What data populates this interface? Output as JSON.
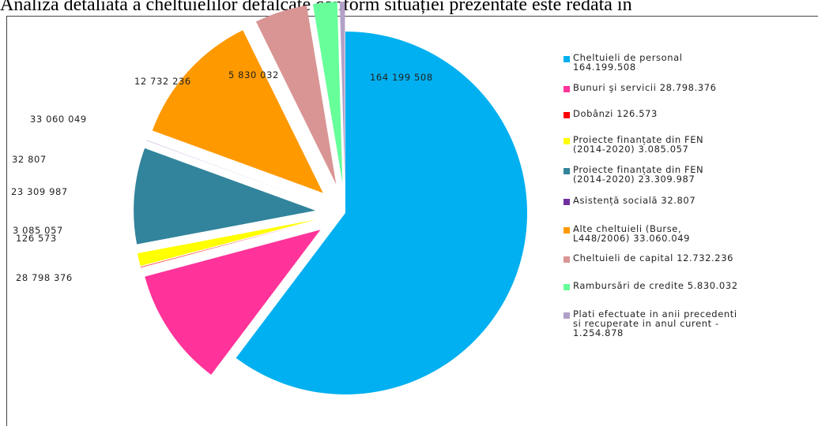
{
  "caption": "Analiza detaliată a cheltuielilor defalcate conform situației prezentate este redată în",
  "chart_data": {
    "type": "pie",
    "slices": [
      {
        "label": "164 199 508",
        "value": 164199508,
        "color": "#00B0F0",
        "exploded": false
      },
      {
        "label": "28 798 376",
        "value": 28798376,
        "color": "#FF3399",
        "exploded": true
      },
      {
        "label": "126 573",
        "value": 126573,
        "color": "#FF0000",
        "exploded": true
      },
      {
        "label": "3 085 057",
        "value": 3085057,
        "color": "#FFFF00",
        "exploded": true
      },
      {
        "label": "23 309 987",
        "value": 23309987,
        "color": "#31849B",
        "exploded": true
      },
      {
        "label": "32 807",
        "value": 32807,
        "color": "#7030A0",
        "exploded": true
      },
      {
        "label": "33 060 049",
        "value": 33060049,
        "color": "#FF9900",
        "exploded": true
      },
      {
        "label": "12 732 236",
        "value": 12732236,
        "color": "#D99594",
        "exploded": true
      },
      {
        "label": "5 830 032",
        "value": 5830032,
        "color": "#66FF99",
        "exploded": true
      },
      {
        "label": "",
        "value": 1254878,
        "color": "#B2A1C7",
        "exploded": true
      }
    ],
    "legend": [
      {
        "text": "Cheltuieli de personal\n164.199.508",
        "color": "#00B0F0"
      },
      {
        "text": "Bunuri şi servicii 28.798.376",
        "color": "#FF3399"
      },
      {
        "text": "Dobânzi 126.573",
        "color": "#FF0000"
      },
      {
        "text": "Proiecte finanțate din FEN\n(2014-2020) 3.085.057",
        "color": "#FFFF00"
      },
      {
        "text": "Proiecte finanțate din FEN\n(2014-2020) 23.309.987",
        "color": "#31849B"
      },
      {
        "text": "Asistență socială 32.807",
        "color": "#7030A0"
      },
      {
        "text": "Alte cheltuieli (Burse,\nL448/2006) 33.060.049",
        "color": "#FF9900"
      },
      {
        "text": "Cheltuieli de capital 12.732.236",
        "color": "#D99594"
      },
      {
        "text": "Rambursări de credite 5.830.032",
        "color": "#66FF99"
      },
      {
        "text": "Plati efectuate in anii precedenti\nsi recuperate in anul curent  -\n1.254.878",
        "color": "#B2A1C7"
      }
    ],
    "legend_position": "right"
  }
}
